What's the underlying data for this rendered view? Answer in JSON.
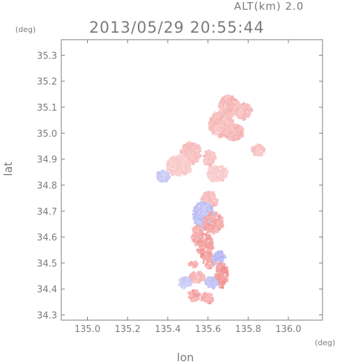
{
  "header": {
    "altitude_label": "ALT(km)  2.0",
    "timestamp": "2013/05/29  20:55:44"
  },
  "axes": {
    "x_unit": "(deg)",
    "y_unit": "(deg)",
    "x_label": "lon",
    "y_label": "lat"
  },
  "chart_data": {
    "type": "heatmap",
    "xlim": [
      134.87,
      136.17
    ],
    "ylim": [
      34.28,
      35.36
    ],
    "x_ticks": [
      135.0,
      135.2,
      135.4,
      135.6,
      135.8,
      136.0
    ],
    "x_tick_labels": [
      "135.0",
      "135.2",
      "135.4",
      "135.6",
      "135.8",
      "136.0"
    ],
    "y_ticks": [
      34.3,
      34.4,
      34.5,
      34.6,
      34.7,
      34.8,
      34.9,
      35.0,
      35.1,
      35.2,
      35.3
    ],
    "y_tick_labels": [
      "34.3",
      "34.4",
      "34.5",
      "34.6",
      "34.7",
      "34.8",
      "34.9",
      "35.0",
      "35.1",
      "35.2",
      "35.3"
    ],
    "colors": {
      "positive": "#f08a8a",
      "positive_light": "#f7c4c4",
      "negative": "#9a9af0",
      "negative_light": "#cfd4f5",
      "frame": "#7a7a7a",
      "grid": "#d0d0d0"
    },
    "blobs": [
      {
        "lon": 135.7,
        "lat": 35.11,
        "rx": 0.05,
        "ry": 0.04,
        "sign": 1,
        "strength": 0.5
      },
      {
        "lon": 135.77,
        "lat": 35.09,
        "rx": 0.04,
        "ry": 0.03,
        "sign": 1,
        "strength": 0.45
      },
      {
        "lon": 135.66,
        "lat": 35.04,
        "rx": 0.06,
        "ry": 0.05,
        "sign": 1,
        "strength": 0.45
      },
      {
        "lon": 135.72,
        "lat": 35.01,
        "rx": 0.05,
        "ry": 0.03,
        "sign": 1,
        "strength": 0.5
      },
      {
        "lon": 135.51,
        "lat": 34.93,
        "rx": 0.05,
        "ry": 0.04,
        "sign": 1,
        "strength": 0.45
      },
      {
        "lon": 135.6,
        "lat": 34.91,
        "rx": 0.03,
        "ry": 0.03,
        "sign": 1,
        "strength": 0.4
      },
      {
        "lon": 135.45,
        "lat": 34.88,
        "rx": 0.06,
        "ry": 0.04,
        "sign": 1,
        "strength": 0.3
      },
      {
        "lon": 135.84,
        "lat": 34.94,
        "rx": 0.03,
        "ry": 0.02,
        "sign": 1,
        "strength": 0.4
      },
      {
        "lon": 135.37,
        "lat": 34.84,
        "rx": 0.03,
        "ry": 0.02,
        "sign": -1,
        "strength": 0.4
      },
      {
        "lon": 135.64,
        "lat": 34.85,
        "rx": 0.05,
        "ry": 0.03,
        "sign": 1,
        "strength": 0.3
      },
      {
        "lon": 135.6,
        "lat": 34.75,
        "rx": 0.04,
        "ry": 0.03,
        "sign": 1,
        "strength": 0.45
      },
      {
        "lon": 135.57,
        "lat": 34.69,
        "rx": 0.05,
        "ry": 0.05,
        "sign": -1,
        "strength": 0.55
      },
      {
        "lon": 135.62,
        "lat": 34.66,
        "rx": 0.05,
        "ry": 0.04,
        "sign": 1,
        "strength": 0.7
      },
      {
        "lon": 135.54,
        "lat": 34.61,
        "rx": 0.03,
        "ry": 0.04,
        "sign": 1,
        "strength": 0.6
      },
      {
        "lon": 135.58,
        "lat": 34.57,
        "rx": 0.04,
        "ry": 0.05,
        "sign": 1,
        "strength": 0.8
      },
      {
        "lon": 135.6,
        "lat": 34.51,
        "rx": 0.03,
        "ry": 0.03,
        "sign": 1,
        "strength": 0.7
      },
      {
        "lon": 135.65,
        "lat": 34.52,
        "rx": 0.03,
        "ry": 0.03,
        "sign": -1,
        "strength": 0.6
      },
      {
        "lon": 135.66,
        "lat": 34.46,
        "rx": 0.03,
        "ry": 0.05,
        "sign": 1,
        "strength": 0.8
      },
      {
        "lon": 135.61,
        "lat": 34.43,
        "rx": 0.03,
        "ry": 0.02,
        "sign": -1,
        "strength": 0.5
      },
      {
        "lon": 135.54,
        "lat": 34.45,
        "rx": 0.04,
        "ry": 0.02,
        "sign": 1,
        "strength": 0.5
      },
      {
        "lon": 135.48,
        "lat": 34.43,
        "rx": 0.03,
        "ry": 0.02,
        "sign": -1,
        "strength": 0.4
      },
      {
        "lon": 135.52,
        "lat": 34.38,
        "rx": 0.03,
        "ry": 0.02,
        "sign": 1,
        "strength": 0.7
      },
      {
        "lon": 135.59,
        "lat": 34.37,
        "rx": 0.03,
        "ry": 0.02,
        "sign": 1,
        "strength": 0.65
      },
      {
        "lon": 135.52,
        "lat": 34.5,
        "rx": 0.02,
        "ry": 0.01,
        "sign": 1,
        "strength": 0.6
      }
    ]
  }
}
